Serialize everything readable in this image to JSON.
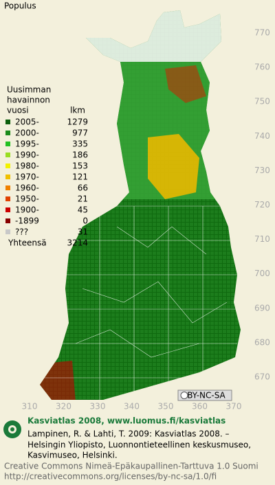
{
  "title": "Populus",
  "legend": {
    "heading": [
      "Uusimman",
      "havainnon"
    ],
    "columns": [
      "vuosi",
      "lkm"
    ],
    "rows": [
      {
        "label": "2005-",
        "count": 1279,
        "color": "#0b5e0b"
      },
      {
        "label": "2000-",
        "count": 977,
        "color": "#1a8a1a"
      },
      {
        "label": "1995-",
        "count": 335,
        "color": "#22c022"
      },
      {
        "label": "1990-",
        "count": 186,
        "color": "#99dd22"
      },
      {
        "label": "1980-",
        "count": 153,
        "color": "#f2f200"
      },
      {
        "label": "1970-",
        "count": 121,
        "color": "#f0c000"
      },
      {
        "label": "1960-",
        "count": 66,
        "color": "#f08000"
      },
      {
        "label": "1950-",
        "count": 21,
        "color": "#e04000"
      },
      {
        "label": "1900-",
        "count": 45,
        "color": "#cc0000"
      },
      {
        "label": "-1899",
        "count": 0,
        "color": "#880000"
      },
      {
        "label": "???",
        "count": 31,
        "color": "#c8c8c8"
      }
    ],
    "total_label": "Yhteensä",
    "total": 3214
  },
  "y_axis_labels": [
    770,
    760,
    750,
    740,
    730,
    720,
    710,
    700,
    690,
    680,
    670
  ],
  "x_axis_labels": [
    310,
    320,
    330,
    340,
    350,
    360,
    370
  ],
  "badge": "BY-NC-SA",
  "footer": {
    "heading": "Kasviatlas 2008, www.luomus.fi/kasviatlas",
    "citation": [
      "Lampinen, R. & Lahti, T. 2009: Kasviatlas 2008. –",
      "Helsingin Yliopisto, Luonnontieteellinen keskusmuseo,",
      "Kasvimuseo, Helsinki."
    ],
    "license": [
      "Creative Commons Nimeä-Epäkaupallinen-Tarttuva 1.0 Suomi",
      "http://creativecommons.org/licenses/by-nc-sa/1.0/fi"
    ]
  }
}
